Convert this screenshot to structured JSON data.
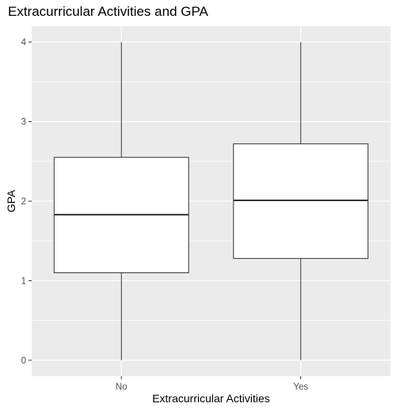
{
  "chart_data": {
    "type": "box",
    "title": "Extracurricular Activities and GPA",
    "xlabel": "Extracurricular Activities",
    "ylabel": "GPA",
    "categories": [
      "No",
      "Yes"
    ],
    "ylim": [
      -0.2,
      4.2
    ],
    "y_ticks": [
      0,
      1,
      2,
      3,
      4
    ],
    "grid": true,
    "boxes": [
      {
        "category": "No",
        "min": 0,
        "q1": 1.1,
        "median": 1.83,
        "q3": 2.55,
        "max": 4
      },
      {
        "category": "Yes",
        "min": 0,
        "q1": 1.28,
        "median": 2.01,
        "q3": 2.72,
        "max": 4
      }
    ],
    "colors": {
      "panel": "#ebebeb",
      "grid": "#ffffff",
      "box_fill": "#ffffff",
      "box_line": "#333333",
      "tick": "#4d4d4d"
    }
  }
}
